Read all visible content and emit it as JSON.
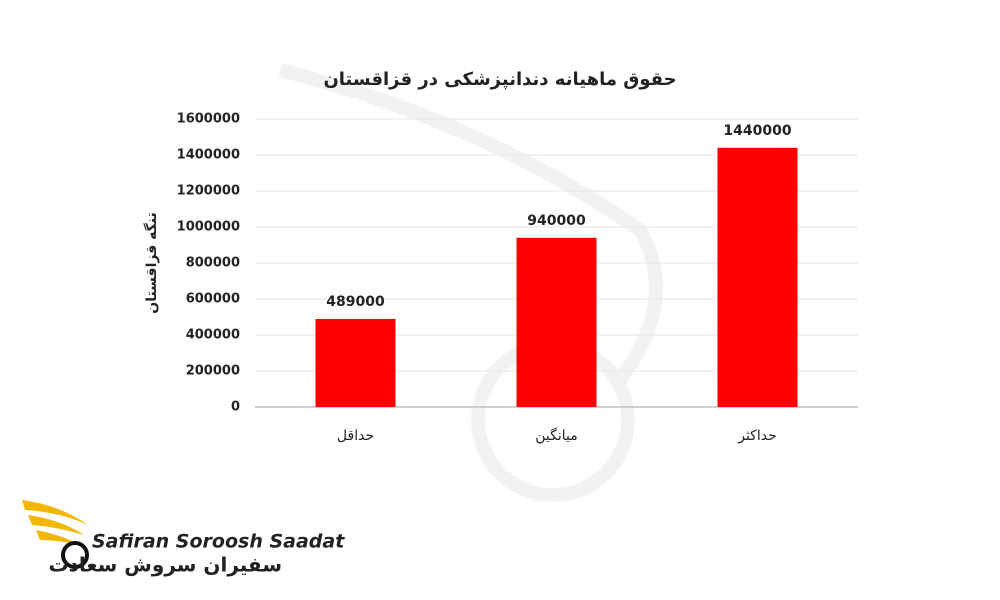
{
  "chart_data": {
    "type": "bar",
    "title": "حقوق ماهیانه دندانپزشکی در قزاقستان",
    "y_label": "تنگه قزاقستان",
    "categories": [
      "حداقل",
      "میانگین",
      "حداکثر"
    ],
    "values": [
      489000,
      940000,
      1440000
    ],
    "color": "#ff0000",
    "ylim": [
      0,
      1600000
    ],
    "yticks": [
      0,
      200000,
      400000,
      600000,
      800000,
      1000000,
      1200000,
      1400000,
      1600000
    ],
    "grid": true
  },
  "logo": {
    "name_en": "Safiran Soroosh Saadat",
    "name_fa": "سفیران سروش سعادت"
  }
}
